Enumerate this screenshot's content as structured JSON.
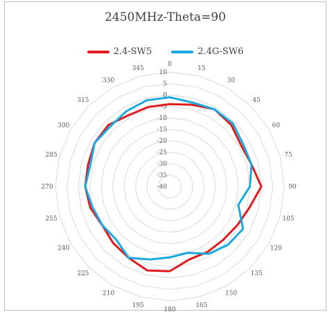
{
  "chart_data": {
    "type": "radar",
    "title": "2450MHz-Theta=90",
    "angles": [
      "0",
      "15",
      "30",
      "45",
      "60",
      "75",
      "90",
      "105",
      "120",
      "135",
      "150",
      "165",
      "180",
      "195",
      "210",
      "225",
      "240",
      "255",
      "270",
      "285",
      "300",
      "315",
      "330",
      "345"
    ],
    "rlim": [
      -40,
      10
    ],
    "r_ticks": [
      "10",
      "5",
      "0",
      "-5",
      "-10",
      "-15",
      "-20",
      "-25",
      "-30",
      "-35",
      "-40"
    ],
    "legend_position": "top",
    "series": [
      {
        "name": "2.4-SW5",
        "color": "#e31a1c",
        "values": [
          -4,
          -3,
          -1,
          -2,
          -4,
          -3,
          0,
          -4,
          -6,
          -7,
          -7,
          -7,
          -3,
          -2,
          -4,
          -5,
          -6,
          -4,
          -3,
          -3,
          -2,
          -2,
          -4,
          -4
        ]
      },
      {
        "name": "2.4G-SW6",
        "color": "#17a9e0",
        "values": [
          -1,
          -2,
          -1,
          -1,
          -3,
          -3,
          -5,
          -9,
          -3,
          -4,
          -6,
          -10,
          -9,
          -7,
          -4,
          -7,
          -6,
          -5,
          -3,
          -4,
          -2,
          -3,
          -2,
          -1
        ]
      }
    ]
  }
}
